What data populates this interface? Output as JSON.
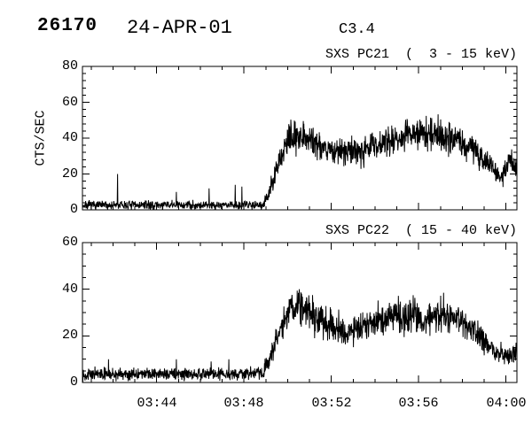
{
  "header": {
    "event_number": "26170",
    "date": "24-APR-01",
    "goes_class": "C3.4"
  },
  "colors": {
    "foreground": "#000000",
    "background": "#ffffff"
  },
  "chart_data": [
    {
      "id": "pc21",
      "type": "line",
      "title": "SXS PC21  (  3 - 15 keV)",
      "ylabel": "CTS/SEC",
      "xlabel": "",
      "xlim": [
        40.6,
        60.5
      ],
      "ylim": [
        0,
        80
      ],
      "x_major_ticks": [
        44,
        48,
        52,
        56,
        60
      ],
      "x_minor_step": 1,
      "y_major_ticks": [
        0,
        20,
        40,
        60,
        80
      ],
      "y_minor_step": 4,
      "y_tick_labels": [
        "80",
        "60",
        "40",
        "20",
        "0"
      ],
      "x_tick_labels": [],
      "grid": false,
      "legend": "none",
      "seed": 7,
      "n_samples": 1500,
      "envelope": {
        "t": [
          40.6,
          48.0,
          48.85,
          49.1,
          49.4,
          49.7,
          50.0,
          50.5,
          51.0,
          51.5,
          52.0,
          52.5,
          53.0,
          53.5,
          54.0,
          54.5,
          55.0,
          55.5,
          56.0,
          56.5,
          57.0,
          57.5,
          58.0,
          58.5,
          59.0,
          59.4,
          59.8,
          60.15,
          60.5
        ],
        "mean": [
          2.5,
          2.8,
          3.0,
          8.0,
          18.0,
          30.0,
          38.0,
          43.0,
          40.0,
          36.0,
          33.0,
          32.0,
          33.0,
          34.0,
          36.0,
          38.0,
          40.0,
          42.0,
          42.0,
          43.0,
          42.0,
          40.0,
          38.0,
          34.0,
          28.0,
          24.0,
          17.0,
          28.0,
          24.0
        ],
        "amp": [
          2.2,
          2.2,
          2.5,
          4.0,
          6.0,
          7.0,
          7.5,
          8.0,
          8.0,
          7.5,
          7.0,
          7.0,
          7.0,
          7.0,
          7.0,
          7.0,
          7.5,
          8.0,
          8.0,
          8.0,
          8.0,
          8.0,
          7.5,
          7.0,
          6.5,
          6.0,
          5.0,
          6.0,
          6.0
        ]
      },
      "spikes": [
        [
          42.2,
          20
        ],
        [
          44.9,
          10
        ],
        [
          46.4,
          12
        ],
        [
          47.6,
          14
        ],
        [
          47.9,
          13
        ]
      ]
    },
    {
      "id": "pc22",
      "type": "line",
      "title": "SXS PC22  ( 15 - 40 keV)",
      "ylabel": "",
      "xlabel": "",
      "xlim": [
        40.6,
        60.5
      ],
      "ylim": [
        0,
        60
      ],
      "x_major_ticks": [
        44,
        48,
        52,
        56,
        60
      ],
      "x_minor_step": 1,
      "y_major_ticks": [
        0,
        20,
        40,
        60
      ],
      "y_minor_step": 5,
      "y_tick_labels": [
        "60",
        "40",
        "20",
        "0"
      ],
      "x_tick_labels": [
        "03:44",
        "03:48",
        "03:52",
        "03:56",
        "04:00"
      ],
      "grid": false,
      "legend": "none",
      "seed": 13,
      "n_samples": 1500,
      "envelope": {
        "t": [
          40.6,
          48.0,
          48.8,
          49.1,
          49.4,
          49.7,
          50.1,
          50.5,
          51.0,
          51.5,
          52.0,
          52.5,
          53.0,
          53.5,
          54.0,
          54.5,
          55.0,
          55.5,
          56.0,
          56.5,
          57.0,
          57.5,
          58.0,
          58.5,
          59.0,
          59.5,
          60.0,
          60.5
        ],
        "mean": [
          3.5,
          3.8,
          4.0,
          8.0,
          15.0,
          24.0,
          31.0,
          34.0,
          31.0,
          27.0,
          24.0,
          22.0,
          23.0,
          24.0,
          26.0,
          27.0,
          29.0,
          28.0,
          27.0,
          28.0,
          29.0,
          28.0,
          26.0,
          23.0,
          18.0,
          13.0,
          11.0,
          13.0
        ],
        "amp": [
          2.2,
          2.2,
          2.5,
          3.5,
          5.0,
          6.0,
          6.5,
          7.0,
          7.0,
          6.5,
          6.0,
          6.0,
          6.0,
          6.0,
          6.0,
          6.5,
          7.0,
          7.0,
          7.0,
          7.0,
          7.0,
          7.0,
          6.5,
          6.0,
          5.0,
          4.5,
          4.0,
          4.0
        ]
      },
      "spikes": [
        [
          41.8,
          10
        ],
        [
          44.9,
          10
        ],
        [
          46.5,
          9
        ],
        [
          47.3,
          10
        ]
      ]
    }
  ]
}
